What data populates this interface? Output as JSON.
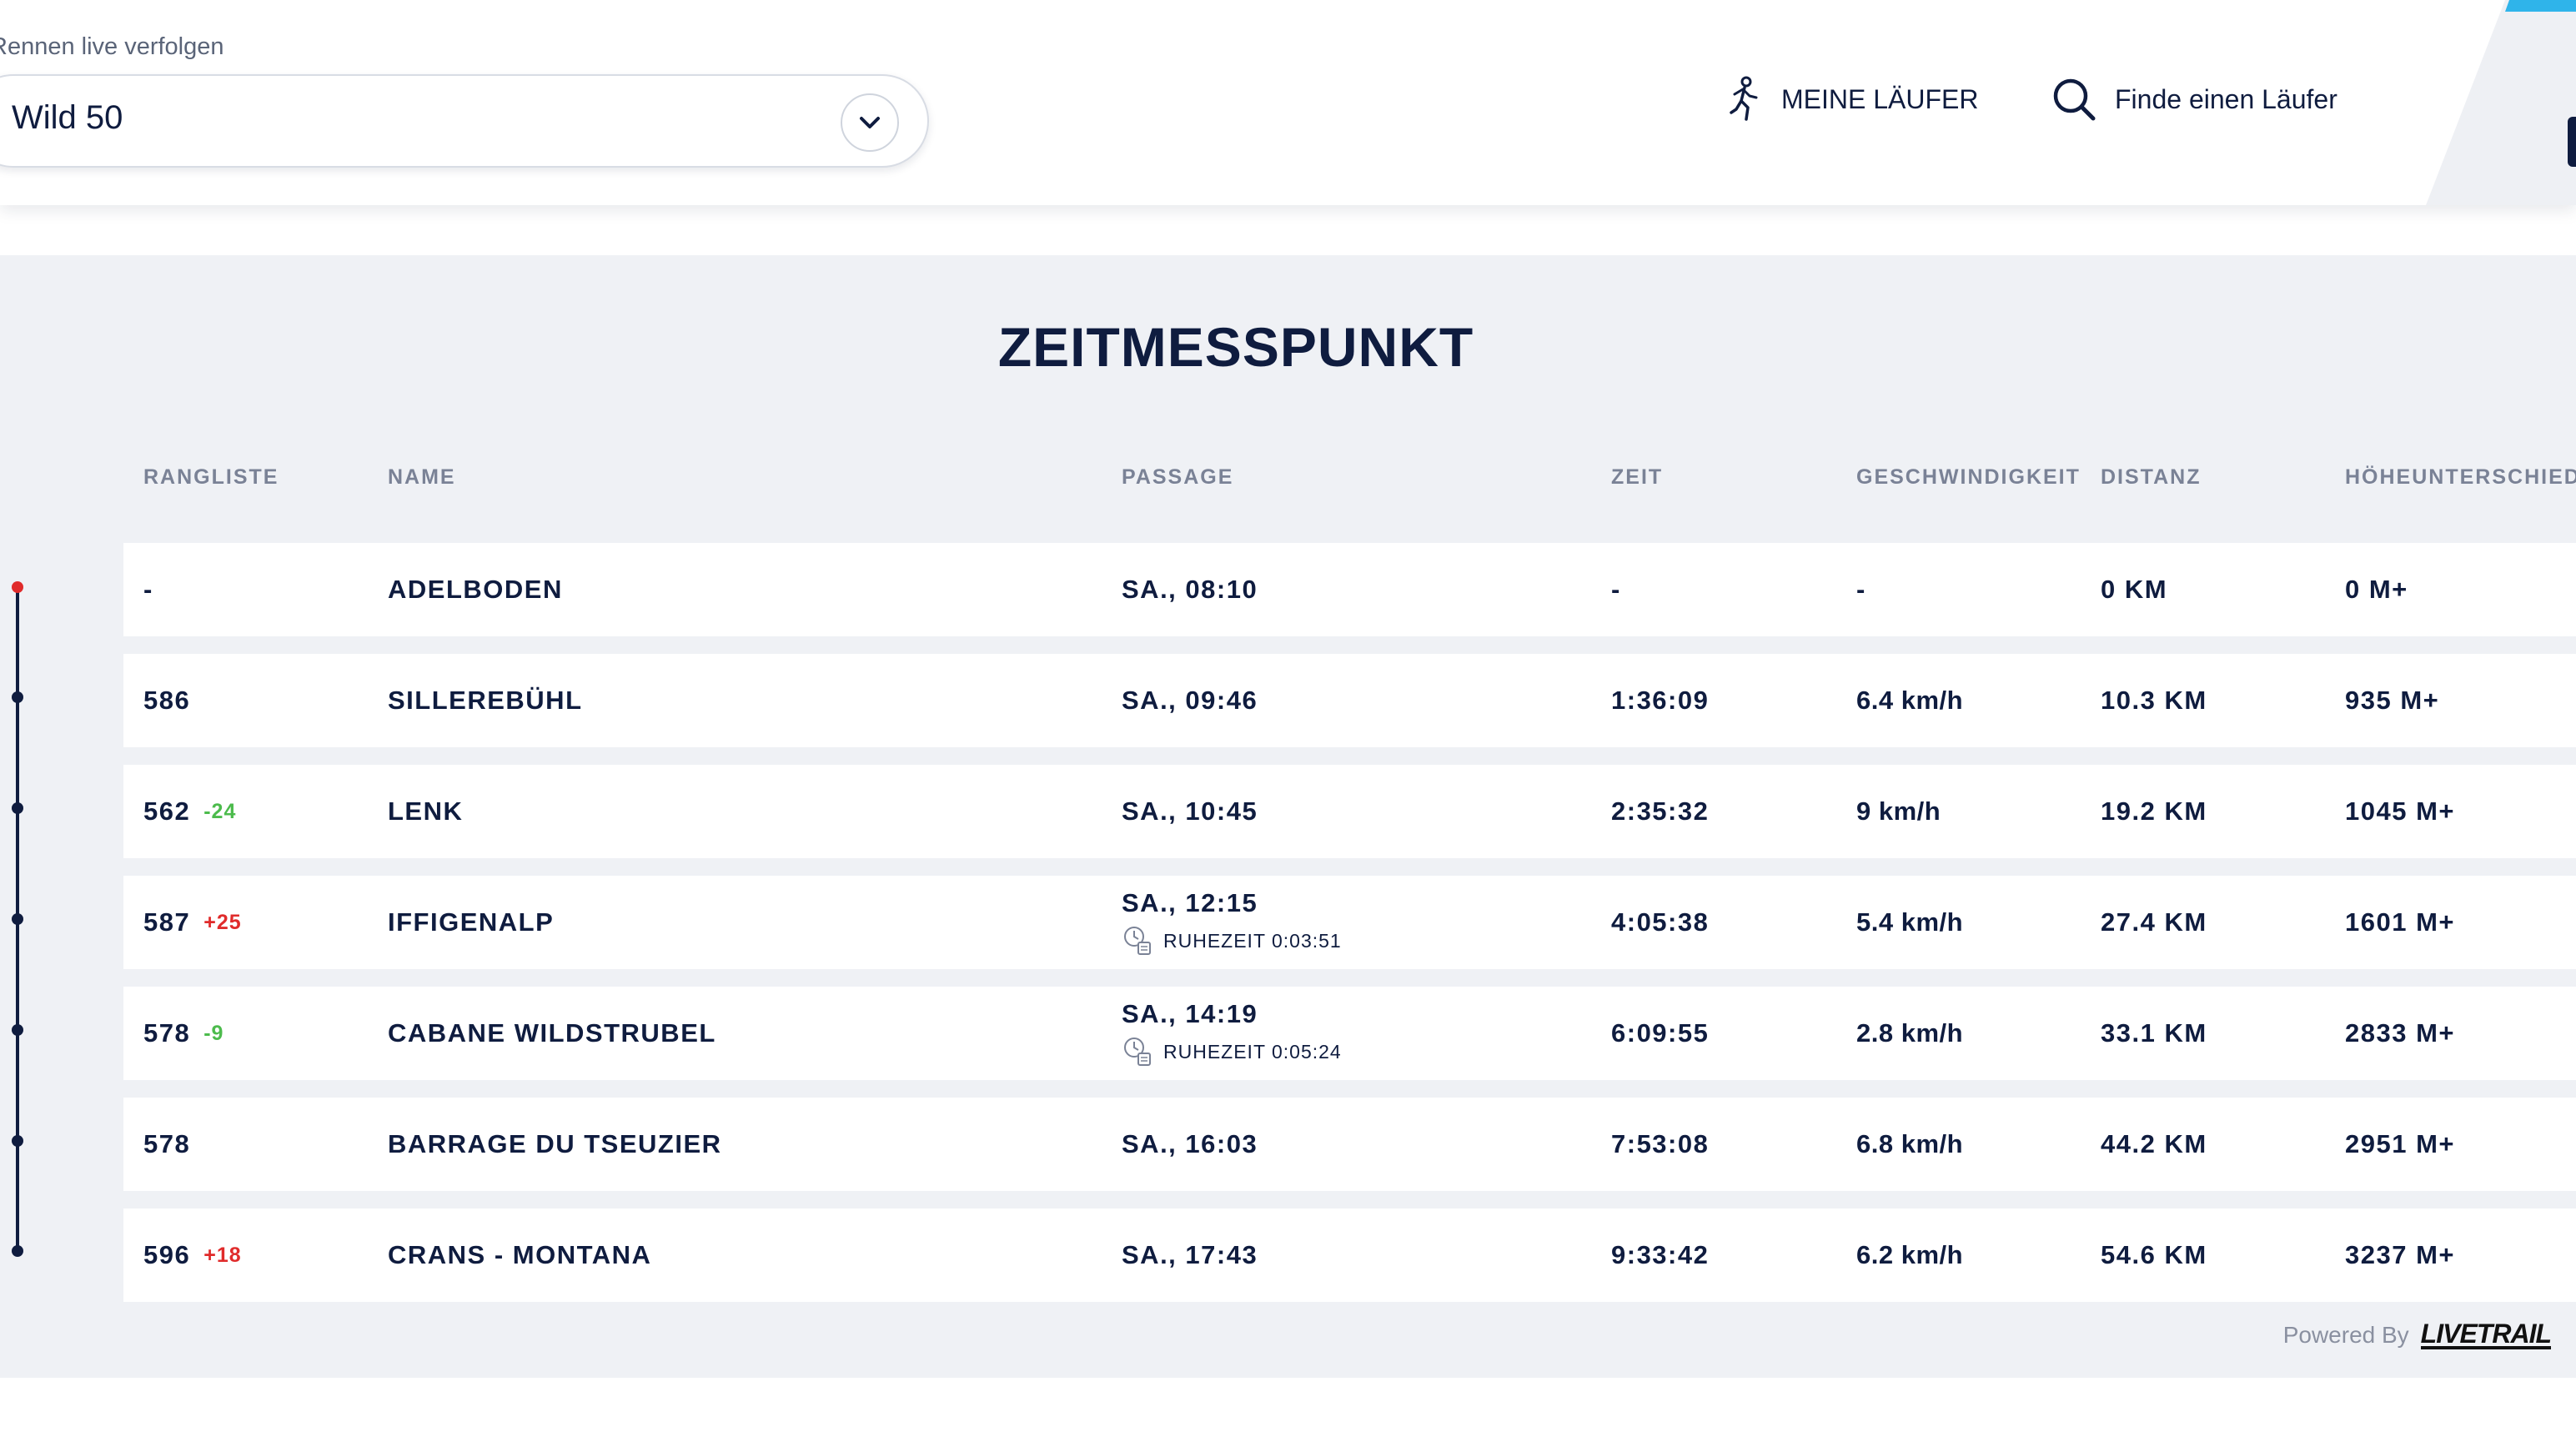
{
  "header": {
    "race_label": "Rennen live verfolgen",
    "race_value": "Wild 50",
    "my_runners": "MEINE LÄUFER",
    "find_runner": "Finde einen Läufer",
    "accent_color": "#2fb4ea"
  },
  "main": {
    "title": "ZEITMESSPUNKT",
    "columns": {
      "rank": "RANGLISTE",
      "name": "NAME",
      "passage": "PASSAGE",
      "time": "ZEIT",
      "speed": "GESCHWINDIGKEIT",
      "distance": "DISTANZ",
      "elevation": "HÖHEUNTERSCHIED"
    },
    "rows": [
      {
        "rank": "-",
        "delta": "",
        "name": "ADELBODEN",
        "passage": "SA., 08:10",
        "rest": "",
        "time": "-",
        "speed": "-",
        "distance": "0 KM",
        "elevation": "0 M+"
      },
      {
        "rank": "586",
        "delta": "",
        "name": "SILLEREBÜHL",
        "passage": "SA., 09:46",
        "rest": "",
        "time": "1:36:09",
        "speed": "6.4 km/h",
        "distance": "10.3 KM",
        "elevation": "935 M+"
      },
      {
        "rank": "562",
        "delta": "-24",
        "name": "LENK",
        "passage": "SA., 10:45",
        "rest": "",
        "time": "2:35:32",
        "speed": "9 km/h",
        "distance": "19.2 KM",
        "elevation": "1045 M+"
      },
      {
        "rank": "587",
        "delta": "+25",
        "name": "IFFIGENALP",
        "passage": "SA., 12:15",
        "rest": "RUHEZEIT 0:03:51",
        "time": "4:05:38",
        "speed": "5.4 km/h",
        "distance": "27.4 KM",
        "elevation": "1601 M+"
      },
      {
        "rank": "578",
        "delta": "-9",
        "name": "CABANE WILDSTRUBEL",
        "passage": "SA., 14:19",
        "rest": "RUHEZEIT 0:05:24",
        "time": "6:09:55",
        "speed": "2.8 km/h",
        "distance": "33.1 KM",
        "elevation": "2833 M+"
      },
      {
        "rank": "578",
        "delta": "",
        "name": "BARRAGE DU TSEUZIER",
        "passage": "SA., 16:03",
        "rest": "",
        "time": "7:53:08",
        "speed": "6.8 km/h",
        "distance": "44.2 KM",
        "elevation": "2951 M+"
      },
      {
        "rank": "596",
        "delta": "+18",
        "name": "CRANS - MONTANA",
        "passage": "SA., 17:43",
        "rest": "",
        "time": "9:33:42",
        "speed": "6.2 km/h",
        "distance": "54.6 KM",
        "elevation": "3237 M+"
      }
    ]
  },
  "footer": {
    "powered_by": "Powered By",
    "brand": "LIVETRAIL"
  },
  "colors": {
    "navy": "#0f1c3f",
    "rank_worse": "#e02b2b",
    "rank_better": "#4cbb4c",
    "timeline_start": "#e02b2b"
  }
}
